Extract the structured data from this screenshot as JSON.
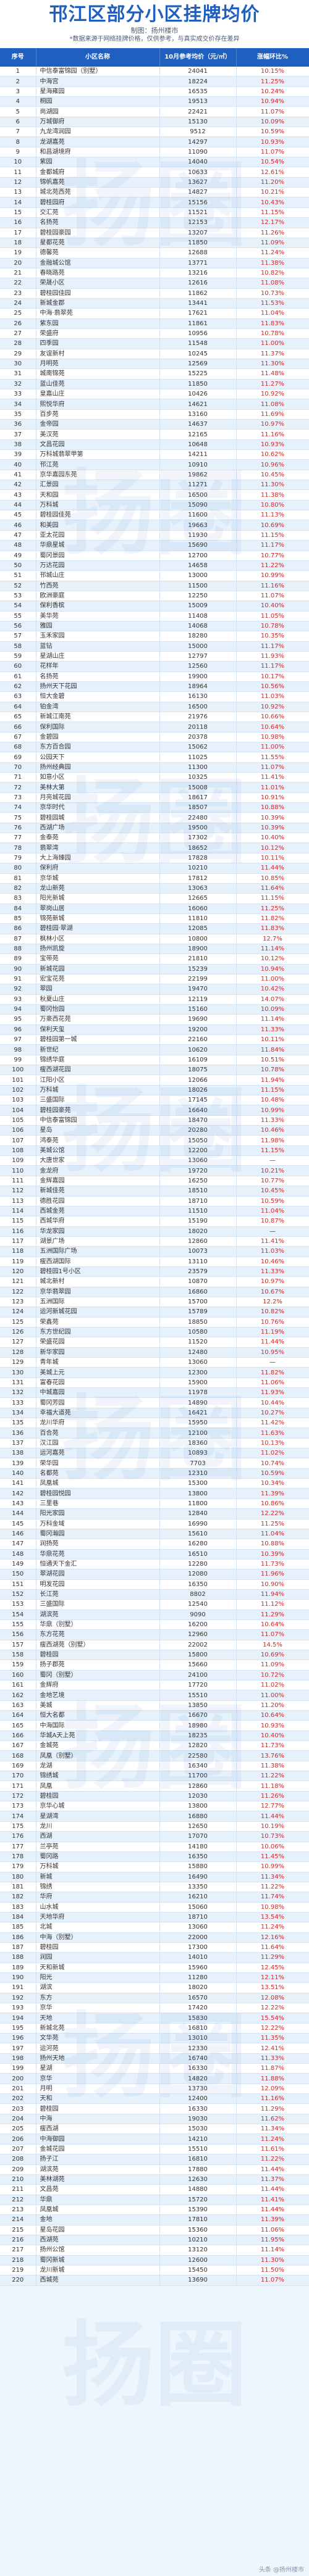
{
  "header": {
    "title": "邗江区部分小区挂牌均价",
    "source": "制图：扬州楼市 ",
    "note": "*数据来源于网络挂牌价格，仅供参考，与真实成交价存在差异"
  },
  "table": {
    "columns": [
      "序号",
      "小区名称",
      "10月参考均价（元/㎡）",
      "涨幅环比%"
    ],
    "rows": [
      [
        "1",
        "中信泰富锦园（别墅）",
        "24041",
        "10.15%"
      ],
      [
        "2",
        "中海宫",
        "18224",
        "11.25%"
      ],
      [
        "3",
        "星海雍园",
        "16535",
        "10.24%"
      ],
      [
        "4",
        "桐园",
        "19513",
        "10.94%"
      ],
      [
        "5",
        "尚湖园",
        "22421",
        "11.07%"
      ],
      [
        "6",
        "万城御府",
        "15130",
        "10.09%"
      ],
      [
        "7",
        "九龙湾润园",
        "9512",
        "10.59%"
      ],
      [
        "8",
        "龙湖嘉苑",
        "14297",
        "10.93%"
      ],
      [
        "9",
        "和昌湖境府",
        "11090",
        "11.07%"
      ],
      [
        "10",
        "紫园",
        "14040",
        "10.54%"
      ],
      [
        "11",
        "金都城府",
        "10633",
        "12.61%"
      ],
      [
        "12",
        "锦帆嘉苑",
        "13627",
        "11.20%"
      ],
      [
        "13",
        "城北苑西苑",
        "14827",
        "10.21%"
      ],
      [
        "14",
        "碧桂园府",
        "15156",
        "10.43%"
      ],
      [
        "15",
        "交汇苑",
        "11521",
        "11.15%"
      ],
      [
        "16",
        "名扬苑",
        "12153",
        "12.17%"
      ],
      [
        "17",
        "碧桂园豪园",
        "13207",
        "11.26%"
      ],
      [
        "18",
        "星都花苑",
        "11850",
        "11.09%"
      ],
      [
        "19",
        "德馨苑",
        "12688",
        "11.24%"
      ],
      [
        "20",
        "金融城公馆",
        "13771",
        "11.38%"
      ],
      [
        "21",
        "春晓路苑",
        "13216",
        "10.82%"
      ],
      [
        "22",
        "荣晟小区",
        "12616",
        "11.08%"
      ],
      [
        "23",
        "碧桂园佳园",
        "11862",
        "10.73%"
      ],
      [
        "24",
        "新城金郡",
        "13441",
        "11.53%"
      ],
      [
        "25",
        "中海·翡翠苑",
        "17621",
        "11.04%"
      ],
      [
        "26",
        "紫东园",
        "11861",
        "11.83%"
      ],
      [
        "27",
        "荣盛府",
        "10956",
        "10.78%"
      ],
      [
        "28",
        "四季园",
        "11548",
        "11.00%"
      ],
      [
        "29",
        "友谊新村",
        "10245",
        "11.37%"
      ],
      [
        "30",
        "月明苑",
        "12569",
        "11.30%"
      ],
      [
        "31",
        "城南锦苑",
        "15225",
        "11.48%"
      ],
      [
        "32",
        "蓝山佳苑",
        "11850",
        "11.27%"
      ],
      [
        "33",
        "皇嘉山庄",
        "10426",
        "10.92%"
      ],
      [
        "34",
        "熙悦华府",
        "14621",
        "11.08%"
      ],
      [
        "35",
        "百步苑",
        "13160",
        "11.69%"
      ],
      [
        "36",
        "金帝园",
        "14637",
        "10.97%"
      ],
      [
        "37",
        "美汉苑",
        "12165",
        "11.16%"
      ],
      [
        "38",
        "文昌花园",
        "10648",
        "10.93%"
      ],
      [
        "39",
        "万科城翡翠甲第",
        "14211",
        "10.62%"
      ],
      [
        "40",
        "邗江苑",
        "10910",
        "10.96%"
      ],
      [
        "41",
        "京华嘉园东苑",
        "19862",
        "10.45%"
      ],
      [
        "42",
        "汇景园",
        "11271",
        "11.30%"
      ],
      [
        "43",
        "天和园",
        "16500",
        "11.38%"
      ],
      [
        "44",
        "万科城",
        "15090",
        "10.80%"
      ],
      [
        "45",
        "碧桂园佳苑",
        "11600",
        "11.13%"
      ],
      [
        "46",
        "和美园",
        "19663",
        "10.69%"
      ],
      [
        "47",
        "亚太花园",
        "11930",
        "11.15%"
      ],
      [
        "48",
        "华鼎星城",
        "15690",
        "11.17%"
      ],
      [
        "49",
        "蜀冈景园",
        "12700",
        "10.77%"
      ],
      [
        "50",
        "万达花园",
        "14658",
        "11.22%"
      ],
      [
        "51",
        "邗城山庄",
        "13000",
        "10.99%"
      ],
      [
        "52",
        "竹西苑",
        "11500",
        "11.16%"
      ],
      [
        "53",
        "欧洲豪庭",
        "12250",
        "11.07%"
      ],
      [
        "54",
        "保利香槟",
        "15009",
        "10.40%"
      ],
      [
        "55",
        "美华苑",
        "11408",
        "11.05%"
      ],
      [
        "56",
        "雅园",
        "14068",
        "10.78%"
      ],
      [
        "57",
        "玉禾家园",
        "18280",
        "10.35%"
      ],
      [
        "58",
        "蓝钻",
        "15000",
        "11.17%"
      ],
      [
        "59",
        "星湖山庄",
        "12797",
        "11.93%"
      ],
      [
        "60",
        "花样年",
        "12560",
        "11.17%"
      ],
      [
        "61",
        "名扬苑",
        "19900",
        "10.17%"
      ],
      [
        "62",
        "扬州天下花园",
        "18964",
        "10.56%"
      ],
      [
        "63",
        "恒大金碧",
        "16130",
        "11.03%"
      ],
      [
        "64",
        "铂金湾",
        "16500",
        "10.92%"
      ],
      [
        "65",
        "新城江南苑",
        "21976",
        "10.66%"
      ],
      [
        "66",
        "保利国际",
        "20118",
        "10.64%"
      ],
      [
        "67",
        "金碧园",
        "20378",
        "10.98%"
      ],
      [
        "68",
        "东方百合园",
        "15062",
        "11.00%"
      ],
      [
        "69",
        "公园天下",
        "11025",
        "11.55%"
      ],
      [
        "70",
        "扬州经典园",
        "11300",
        "11.07%"
      ],
      [
        "71",
        "如意小区",
        "10325",
        "11.41%"
      ],
      [
        "72",
        "美林大第",
        "15008",
        "11.01%"
      ],
      [
        "73",
        "月亮城花园",
        "18617",
        "10.91%"
      ],
      [
        "74",
        "京华时代",
        "18507",
        "10.88%"
      ],
      [
        "75",
        "碧桂园城",
        "22480",
        "10.39%"
      ],
      [
        "76",
        "西湖广场",
        "19500",
        "10.39%"
      ],
      [
        "77",
        "金泰苑",
        "17302",
        "10.40%"
      ],
      [
        "78",
        "翡翠湾",
        "18652",
        "10.12%"
      ],
      [
        "79",
        "大上海臻园",
        "17828",
        "10.11%"
      ],
      [
        "80",
        "保利府",
        "10210",
        "11.44%"
      ],
      [
        "81",
        "京华城",
        "17812",
        "10.85%"
      ],
      [
        "82",
        "龙山新苑",
        "13063",
        "11.64%"
      ],
      [
        "83",
        "阳光新城",
        "12665",
        "11.15%"
      ],
      [
        "84",
        "翠岗山居",
        "16060",
        "11.25%"
      ],
      [
        "85",
        "锦苑新城",
        "11810",
        "11.82%"
      ],
      [
        "86",
        "碧桂园·翠湖",
        "12085",
        "11.83%"
      ],
      [
        "87",
        "枫林小区",
        "10800",
        "12.7%"
      ],
      [
        "88",
        "扬州凯旋",
        "18900",
        "11.14%"
      ],
      [
        "89",
        "宝带苑",
        "21810",
        "10.12%"
      ],
      [
        "90",
        "新城花园",
        "15239",
        "10.94%"
      ],
      [
        "91",
        "宏宝花苑",
        "22199",
        "11.00%"
      ],
      [
        "92",
        "翠园",
        "19470",
        "10.42%"
      ],
      [
        "93",
        "秋夏山庄",
        "12119",
        "14.07%"
      ],
      [
        "94",
        "蜀冈怡园",
        "15160",
        "10.09%"
      ],
      [
        "95",
        "万豪西花苑",
        "19690",
        "11.14%"
      ],
      [
        "96",
        "保利天玺",
        "19200",
        "11.33%"
      ],
      [
        "97",
        "碧桂园第一城",
        "22160",
        "10.11%"
      ],
      [
        "98",
        "新世纪",
        "10620",
        "11.84%"
      ],
      [
        "99",
        "锦绣华庭",
        "16109",
        "10.51%"
      ],
      [
        "100",
        "瘦西湖花园",
        "18075",
        "10.78%"
      ],
      [
        "101",
        "江阳小区",
        "12066",
        "11.94%"
      ],
      [
        "102",
        "万科城",
        "18026",
        "11.15%"
      ],
      [
        "103",
        "三盛国际",
        "17145",
        "10.48%"
      ],
      [
        "104",
        "碧桂园豪苑",
        "16640",
        "10.99%"
      ],
      [
        "105",
        "中信泰富锦园",
        "18470",
        "11.33%"
      ],
      [
        "106",
        "星岛",
        "20280",
        "10.46%"
      ],
      [
        "107",
        "鸿泰苑",
        "15050",
        "11.98%"
      ],
      [
        "108",
        "美城公馆",
        "12200",
        "11.15%"
      ],
      [
        "109",
        "大唐世家",
        "13060",
        "—"
      ],
      [
        "110",
        "金龙府",
        "19720",
        "10.21%"
      ],
      [
        "111",
        "金辉嘉园",
        "16250",
        "10.77%"
      ],
      [
        "112",
        "新城佳苑",
        "18510",
        "10.45%"
      ],
      [
        "113",
        "德胜花园",
        "18710",
        "10.59%"
      ],
      [
        "114",
        "西城金苑",
        "11510",
        "11.04%"
      ],
      [
        "115",
        "西城华府",
        "15190",
        "10.87%"
      ],
      [
        "116",
        "华龙家园",
        "18020",
        "—"
      ],
      [
        "117",
        "湖景广场",
        "12860",
        "11.41%"
      ],
      [
        "118",
        "五洲国际广场",
        "10073",
        "11.03%"
      ],
      [
        "119",
        "瘦西湖国际",
        "13110",
        "10.46%"
      ],
      [
        "120",
        "碧桂园1号小区",
        "23579",
        "11.33%"
      ],
      [
        "121",
        "城北新村",
        "10870",
        "10.97%"
      ],
      [
        "122",
        "京华翡翠园",
        "16860",
        "10.67%"
      ],
      [
        "123",
        "五洲国际",
        "15700",
        "12.2%"
      ],
      [
        "124",
        "运河新城花园",
        "15789",
        "10.82%"
      ],
      [
        "125",
        "荣鑫苑",
        "18850",
        "10.76%"
      ],
      [
        "126",
        "东方世纪园",
        "10580",
        "11.19%"
      ],
      [
        "127",
        "荣盛花园",
        "11520",
        "11.44%"
      ],
      [
        "128",
        "新华家园",
        "12480",
        "10.95%"
      ],
      [
        "129",
        "青年城",
        "13060",
        "—"
      ],
      [
        "130",
        "美城上元",
        "12300",
        "11.82%"
      ],
      [
        "131",
        "富春花园",
        "15900",
        "11.06%"
      ],
      [
        "132",
        "中城嘉园",
        "11978",
        "11.93%"
      ],
      [
        "133",
        "蜀冈芳园",
        "14890",
        "10.44%"
      ],
      [
        "134",
        "幸福大道苑",
        "16421",
        "10.27%"
      ],
      [
        "135",
        "龙川华府",
        "15950",
        "11.42%"
      ],
      [
        "136",
        "百合苑",
        "12100",
        "11.63%"
      ],
      [
        "137",
        "汉江园",
        "18360",
        "10.13%"
      ],
      [
        "138",
        "运河嘉苑",
        "10893",
        "11.02%"
      ],
      [
        "139",
        "荣华园",
        "7703",
        "10.74%"
      ],
      [
        "140",
        "名都苑",
        "12310",
        "10.59%"
      ],
      [
        "141",
        "凤凰城",
        "15300",
        "10.34%"
      ],
      [
        "142",
        "碧桂园悦园",
        "13800",
        "11.39%"
      ],
      [
        "143",
        "三里巷",
        "11800",
        "10.86%"
      ],
      [
        "144",
        "阳光家园",
        "12840",
        "12.22%"
      ],
      [
        "145",
        "万科金域",
        "16990",
        "11.25%"
      ],
      [
        "146",
        "蜀冈瀚园",
        "15610",
        "11.04%"
      ],
      [
        "147",
        "润扬苑",
        "16280",
        "10.88%"
      ],
      [
        "148",
        "华鼎花苑",
        "16510",
        "10.39%"
      ],
      [
        "149",
        "恒通天下金汇",
        "12280",
        "11.73%"
      ],
      [
        "150",
        "翠湖花园",
        "12080",
        "11.96%"
      ],
      [
        "151",
        "明发花园",
        "16350",
        "10.90%"
      ],
      [
        "152",
        "长江苑",
        "8802",
        "11.94%"
      ],
      [
        "153",
        "三盛国际",
        "12540",
        "11.12%"
      ],
      [
        "154",
        "湖滨苑",
        "9090",
        "11.29%"
      ],
      [
        "155",
        "华鼎（别墅）",
        "16200",
        "10.64%"
      ],
      [
        "156",
        "东方花苑",
        "12960",
        "11.07%"
      ],
      [
        "157",
        "瘦西湖苑（别墅）",
        "22002",
        "14.5%"
      ],
      [
        "158",
        "碧桂园",
        "15800",
        "10.69%"
      ],
      [
        "159",
        "扬子郡苑",
        "15660",
        "11.09%"
      ],
      [
        "160",
        "蜀冈（别墅）",
        "24100",
        "10.72%"
      ],
      [
        "161",
        "金辉府",
        "17720",
        "11.02%"
      ],
      [
        "162",
        "金地艺境",
        "15510",
        "11.00%"
      ],
      [
        "163",
        "美城",
        "13850",
        "11.20%"
      ],
      [
        "164",
        "恒大名都",
        "16670",
        "10.64%"
      ],
      [
        "165",
        "中海国际",
        "18980",
        "10.93%"
      ],
      [
        "166",
        "华城A天上苑",
        "18235",
        "10.40%"
      ],
      [
        "167",
        "金城苑",
        "12820",
        "11.73%"
      ],
      [
        "168",
        "凤凰（别墅）",
        "22580",
        "13.76%"
      ],
      [
        "169",
        "龙湖",
        "16340",
        "11.38%"
      ],
      [
        "170",
        "锦绣城",
        "11700",
        "11.22%"
      ],
      [
        "171",
        "凤凰",
        "12860",
        "11.18%"
      ],
      [
        "172",
        "碧桂园",
        "12030",
        "11.26%"
      ],
      [
        "173",
        "京华心城",
        "13800",
        "12.77%"
      ],
      [
        "174",
        "星湖湾",
        "16880",
        "11.44%"
      ],
      [
        "175",
        "龙川",
        "12650",
        "10.19%"
      ],
      [
        "176",
        "西湖",
        "17070",
        "10.73%"
      ],
      [
        "177",
        "兰亭苑",
        "14180",
        "10.06%"
      ],
      [
        "178",
        "蜀冈路",
        "16350",
        "11.45%"
      ],
      [
        "179",
        "万科城",
        "15880",
        "10.99%"
      ],
      [
        "180",
        "新城",
        "16490",
        "11.34%"
      ],
      [
        "181",
        "锦绣",
        "13350",
        "11.22%"
      ],
      [
        "182",
        "华府",
        "16210",
        "11.74%"
      ],
      [
        "183",
        "山水城",
        "15060",
        "10.98%"
      ],
      [
        "184",
        "天地华府",
        "18710",
        "13.54%"
      ],
      [
        "185",
        "北城",
        "13060",
        "11.24%"
      ],
      [
        "186",
        "中海（别墅）",
        "22000",
        "12.16%"
      ],
      [
        "187",
        "碧桂园",
        "17300",
        "11.64%"
      ],
      [
        "188",
        "润园",
        "14010",
        "11.29%"
      ],
      [
        "189",
        "天和新城",
        "15960",
        "12.45%"
      ],
      [
        "190",
        "阳光",
        "11280",
        "12.11%"
      ],
      [
        "191",
        "湖滨",
        "18020",
        "13.51%"
      ],
      [
        "192",
        "东方",
        "16570",
        "12.08%"
      ],
      [
        "193",
        "京华",
        "17420",
        "12.22%"
      ],
      [
        "194",
        "天地",
        "15830",
        "15.54%"
      ],
      [
        "195",
        "新城北苑",
        "16810",
        "12.22%"
      ],
      [
        "196",
        "文华苑",
        "13010",
        "11.35%"
      ],
      [
        "197",
        "运河苑",
        "12330",
        "12.41%"
      ],
      [
        "198",
        "扬州天地",
        "16740",
        "11.33%"
      ],
      [
        "199",
        "星湖",
        "16330",
        "11.87%"
      ],
      [
        "200",
        "京华",
        "14820",
        "11.88%"
      ],
      [
        "201",
        "月明",
        "13730",
        "12.09%"
      ],
      [
        "202",
        "天和",
        "12400",
        "11.16%"
      ],
      [
        "203",
        "碧桂园",
        "16330",
        "11.29%"
      ],
      [
        "204",
        "中海",
        "19030",
        "11.62%"
      ],
      [
        "205",
        "瘦西湖",
        "15030",
        "11.34%"
      ],
      [
        "206",
        "中海御园",
        "14210",
        "11.24%"
      ],
      [
        "207",
        "金城花园",
        "15510",
        "11.61%"
      ],
      [
        "208",
        "扬子江",
        "16810",
        "11.22%"
      ],
      [
        "209",
        "湖滨苑",
        "17880",
        "11.44%"
      ],
      [
        "210",
        "美林湖苑",
        "12630",
        "11.37%"
      ],
      [
        "211",
        "文昌苑",
        "14880",
        "11.44%"
      ],
      [
        "212",
        "华鼎",
        "15720",
        "11.41%"
      ],
      [
        "213",
        "凤凰城",
        "15390",
        "11.44%"
      ],
      [
        "214",
        "金地",
        "17810",
        "11.39%"
      ],
      [
        "215",
        "星岛花园",
        "15360",
        "11.06%"
      ],
      [
        "216",
        "西湖苑",
        "10210",
        "11.95%"
      ],
      [
        "217",
        "扬州公馆",
        "13120",
        "11.14%"
      ],
      [
        "218",
        "蜀冈新城",
        "12600",
        "11.30%"
      ],
      [
        "219",
        "龙川新城",
        "15450",
        "11.50%"
      ],
      [
        "220",
        "西城苑",
        "13690",
        "11.07%"
      ]
    ]
  },
  "watermark": "扬圈",
  "footer": "头条 @扬州楼市"
}
